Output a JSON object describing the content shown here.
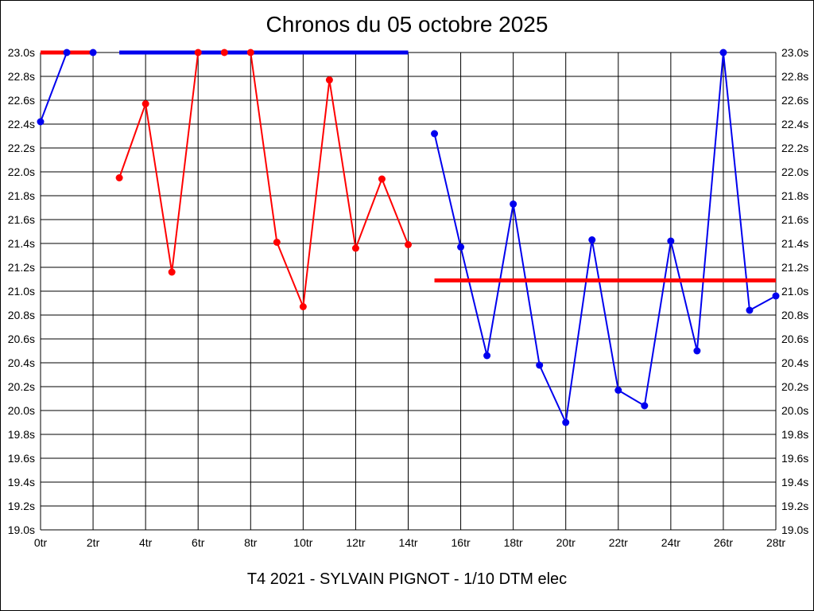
{
  "page": {
    "title": "Chronos du 05 octobre 2025",
    "caption": "T4 2021 - SYLVAIN PIGNOT - 1/10 DTM elec"
  },
  "chart_data": {
    "type": "line",
    "title": "Chronos du 05 octobre 2025",
    "caption": "T4 2021 - SYLVAIN PIGNOT - 1/10 DTM elec",
    "x_unit": "tr",
    "y_unit": "s",
    "x_range": [
      0,
      28
    ],
    "y_range": [
      19.0,
      23.0
    ],
    "x_tick_step": 2,
    "y_tick_step": 0.2,
    "grid": true,
    "legend": "none",
    "y_ticks": [
      "23.0s",
      "22.8s",
      "22.6s",
      "22.4s",
      "22.2s",
      "22.0s",
      "21.8s",
      "21.6s",
      "21.4s",
      "21.2s",
      "21.0s",
      "20.8s",
      "20.6s",
      "20.4s",
      "20.2s",
      "20.0s",
      "19.8s",
      "19.6s",
      "19.4s",
      "19.2s",
      "19.0s"
    ],
    "x_ticks": [
      "0tr",
      "2tr",
      "4tr",
      "6tr",
      "8tr",
      "10tr",
      "12tr",
      "14tr",
      "16tr",
      "18tr",
      "20tr",
      "22tr",
      "24tr",
      "26tr",
      "28tr"
    ],
    "colors": {
      "red": "#ff0000",
      "blue": "#0000ee",
      "grid": "#000000",
      "background": "#ffffff"
    },
    "series": [
      {
        "name": "red-run",
        "color": "#ff0000",
        "segments": [
          {
            "kind": "flat",
            "stroke_width": 5,
            "markers": false,
            "points": [
              [
                0,
                23.0
              ],
              [
                2,
                23.0
              ]
            ]
          },
          {
            "kind": "laps",
            "stroke_width": 2,
            "markers": true,
            "points": [
              [
                3,
                21.95
              ],
              [
                4,
                22.57
              ],
              [
                5,
                21.16
              ],
              [
                6,
                23.0
              ],
              [
                7,
                23.0
              ],
              [
                8,
                23.0
              ],
              [
                9,
                21.41
              ],
              [
                10,
                20.87
              ],
              [
                11,
                22.77
              ],
              [
                12,
                21.36
              ],
              [
                13,
                21.94
              ],
              [
                14,
                21.39
              ]
            ]
          },
          {
            "kind": "flat",
            "stroke_width": 5,
            "markers": false,
            "points": [
              [
                15,
                21.09
              ],
              [
                28,
                21.09
              ]
            ]
          }
        ]
      },
      {
        "name": "blue-run",
        "color": "#0000ee",
        "segments": [
          {
            "kind": "laps",
            "stroke_width": 2,
            "markers": true,
            "points": [
              [
                0,
                22.42
              ],
              [
                1,
                23.0
              ],
              [
                2,
                23.0
              ]
            ]
          },
          {
            "kind": "flat",
            "stroke_width": 5,
            "markers": false,
            "points": [
              [
                3,
                23.0
              ],
              [
                14,
                23.0
              ]
            ]
          },
          {
            "kind": "laps",
            "stroke_width": 2,
            "markers": true,
            "points": [
              [
                15,
                22.32
              ],
              [
                16,
                21.37
              ],
              [
                17,
                20.46
              ],
              [
                18,
                21.73
              ],
              [
                19,
                20.38
              ],
              [
                20,
                19.9
              ],
              [
                21,
                21.43
              ],
              [
                22,
                20.17
              ],
              [
                23,
                20.04
              ],
              [
                24,
                21.42
              ],
              [
                25,
                20.5
              ],
              [
                26,
                23.0
              ],
              [
                27,
                20.84
              ],
              [
                28,
                20.96
              ]
            ]
          }
        ]
      }
    ]
  }
}
